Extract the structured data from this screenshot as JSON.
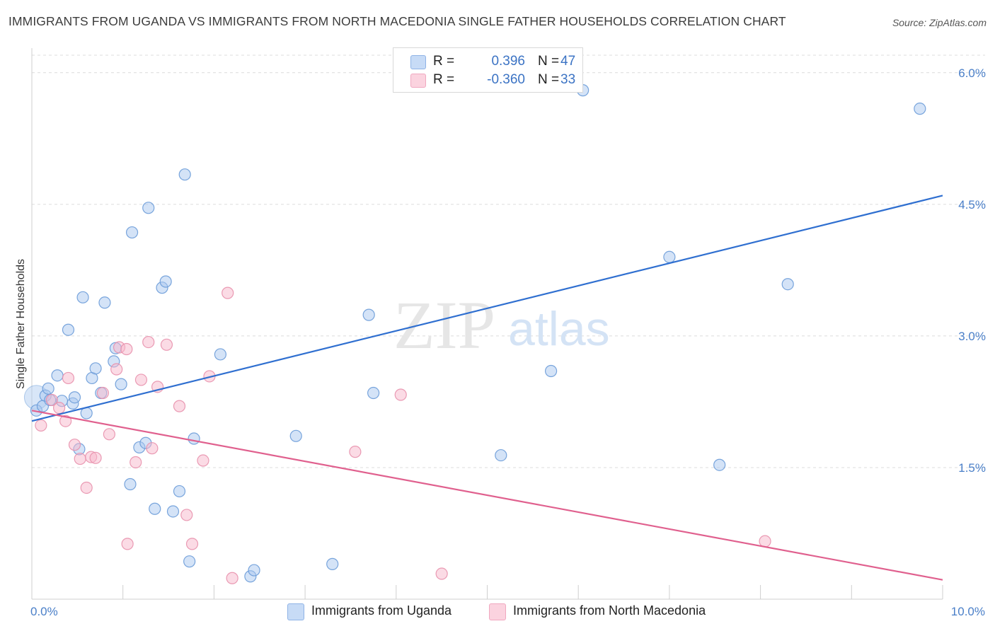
{
  "title": "IMMIGRANTS FROM UGANDA VS IMMIGRANTS FROM NORTH MACEDONIA SINGLE FATHER HOUSEHOLDS CORRELATION CHART",
  "source": "Source: ZipAtlas.com",
  "watermark": {
    "zip": "ZIP",
    "atlas": "atlas"
  },
  "legend": {
    "rows": [
      {
        "r_label": "R =",
        "r_value": "0.396",
        "n_label": "N =",
        "n_value": "47",
        "color": "#a9c8f0"
      },
      {
        "r_label": "R =",
        "r_value": "-0.360",
        "n_label": "N =",
        "n_value": "33",
        "color": "#f7b8cc"
      }
    ]
  },
  "bottom_legend": {
    "uganda": "Immigrants from Uganda",
    "macedonia": "Immigrants from North Macedonia"
  },
  "colors": {
    "uganda_fill": "#a9c8f0",
    "uganda_stroke": "#6a9bd8",
    "uganda_line": "#2f6fd0",
    "macedonia_fill": "#f7b8cc",
    "macedonia_stroke": "#e890ac",
    "macedonia_line": "#e0608e",
    "tick": "#4a7fc8",
    "grid": "#dcdcdc"
  },
  "chart_data": {
    "type": "scatter",
    "ylabel": "Single Father Households",
    "xlim": [
      0,
      10
    ],
    "ylim": [
      0,
      6.2
    ],
    "x_tick_labels": [
      {
        "value": 0,
        "label": "0.0%"
      },
      {
        "value": 10,
        "label": "10.0%"
      }
    ],
    "y_tick_labels": [
      {
        "value": 1.5,
        "label": "1.5%"
      },
      {
        "value": 3.0,
        "label": "3.0%"
      },
      {
        "value": 4.5,
        "label": "4.5%"
      },
      {
        "value": 6.0,
        "label": "6.0%"
      }
    ],
    "series": [
      {
        "name": "Immigrants from Uganda",
        "trend": {
          "x0": 0.0,
          "y0": 2.03,
          "x1": 10.0,
          "y1": 4.6
        },
        "points": [
          [
            0.05,
            2.15
          ],
          [
            0.12,
            2.2
          ],
          [
            0.15,
            2.32
          ],
          [
            0.18,
            2.4
          ],
          [
            0.2,
            2.27
          ],
          [
            0.28,
            2.55
          ],
          [
            0.33,
            2.26
          ],
          [
            0.4,
            3.07
          ],
          [
            0.45,
            2.23
          ],
          [
            0.47,
            2.3
          ],
          [
            0.52,
            1.71
          ],
          [
            0.56,
            3.44
          ],
          [
            0.6,
            2.12
          ],
          [
            0.66,
            2.52
          ],
          [
            0.7,
            2.63
          ],
          [
            0.76,
            2.35
          ],
          [
            0.8,
            3.38
          ],
          [
            0.9,
            2.71
          ],
          [
            0.92,
            2.86
          ],
          [
            0.98,
            2.45
          ],
          [
            1.08,
            1.31
          ],
          [
            1.1,
            4.18
          ],
          [
            1.18,
            1.73
          ],
          [
            1.25,
            1.78
          ],
          [
            1.28,
            4.46
          ],
          [
            1.35,
            1.03
          ],
          [
            1.43,
            3.55
          ],
          [
            1.47,
            3.62
          ],
          [
            1.55,
            1.0
          ],
          [
            1.62,
            1.23
          ],
          [
            1.68,
            4.84
          ],
          [
            1.73,
            0.43
          ],
          [
            1.78,
            1.83
          ],
          [
            2.07,
            2.79
          ],
          [
            2.4,
            0.26
          ],
          [
            2.44,
            0.33
          ],
          [
            2.9,
            1.86
          ],
          [
            3.3,
            0.4
          ],
          [
            3.7,
            3.24
          ],
          [
            3.75,
            2.35
          ],
          [
            5.15,
            1.64
          ],
          [
            5.7,
            2.6
          ],
          [
            7.0,
            3.9
          ],
          [
            7.55,
            1.53
          ],
          [
            8.3,
            3.59
          ],
          [
            9.75,
            5.59
          ],
          [
            6.05,
            5.8
          ]
        ]
      },
      {
        "name": "Immigrants from North Macedonia",
        "trend": {
          "x0": 0.0,
          "y0": 2.15,
          "x1": 10.0,
          "y1": 0.22
        },
        "points": [
          [
            0.1,
            1.98
          ],
          [
            0.22,
            2.27
          ],
          [
            0.3,
            2.18
          ],
          [
            0.37,
            2.03
          ],
          [
            0.4,
            2.52
          ],
          [
            0.47,
            1.76
          ],
          [
            0.53,
            1.6
          ],
          [
            0.6,
            1.27
          ],
          [
            0.65,
            1.62
          ],
          [
            0.7,
            1.61
          ],
          [
            0.78,
            2.35
          ],
          [
            0.85,
            1.88
          ],
          [
            0.93,
            2.62
          ],
          [
            0.96,
            2.87
          ],
          [
            1.04,
            2.85
          ],
          [
            1.05,
            0.63
          ],
          [
            1.14,
            1.56
          ],
          [
            1.2,
            2.5
          ],
          [
            1.28,
            2.93
          ],
          [
            1.32,
            1.72
          ],
          [
            1.38,
            2.42
          ],
          [
            1.48,
            2.9
          ],
          [
            1.7,
            0.96
          ],
          [
            1.76,
            0.63
          ],
          [
            1.88,
            1.58
          ],
          [
            1.95,
            2.54
          ],
          [
            2.15,
            3.49
          ],
          [
            2.2,
            0.24
          ],
          [
            3.55,
            1.68
          ],
          [
            4.05,
            2.33
          ],
          [
            4.5,
            0.29
          ],
          [
            8.05,
            0.66
          ],
          [
            1.62,
            2.2
          ]
        ]
      }
    ]
  }
}
